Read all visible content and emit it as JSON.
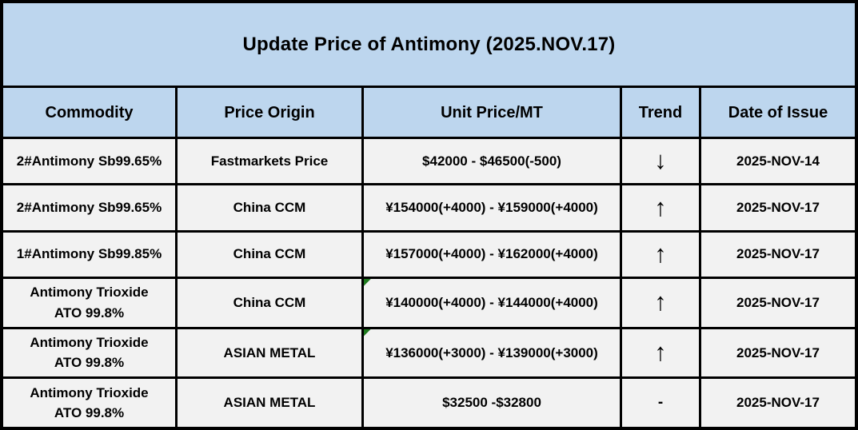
{
  "title": "Update Price of Antimony (2025.NOV.17)",
  "header": {
    "columns": [
      "Commodity",
      "Price Origin",
      "Unit Price/MT",
      "Trend",
      "Date of Issue"
    ]
  },
  "rows": [
    {
      "commodity": [
        "2#Antimony  Sb99.65%"
      ],
      "origin": "Fastmarkets Price",
      "price": "$42000 - $46500(-500)",
      "trend": "↓",
      "date": "2025-NOV-14",
      "price_flag": false
    },
    {
      "commodity": [
        "2#Antimony  Sb99.65%"
      ],
      "origin": "China CCM",
      "price": "¥154000(+4000) - ¥159000(+4000)",
      "trend": "↑",
      "date": "2025-NOV-17",
      "price_flag": false
    },
    {
      "commodity": [
        "1#Antimony  Sb99.85%"
      ],
      "origin": "China CCM",
      "price": "¥157000(+4000) - ¥162000(+4000)",
      "trend": "↑",
      "date": "2025-NOV-17",
      "price_flag": false
    },
    {
      "commodity": [
        "Antimony Trioxide",
        "ATO 99.8%"
      ],
      "origin": "China CCM",
      "price": "¥140000(+4000)  - ¥144000(+4000)",
      "trend": "↑",
      "date": "2025-NOV-17",
      "price_flag": true
    },
    {
      "commodity": [
        "Antimony Trioxide",
        "ATO 99.8%"
      ],
      "origin": "ASIAN METAL",
      "price": "¥136000(+3000)  - ¥139000(+3000)",
      "trend": "↑",
      "date": "2025-NOV-17",
      "price_flag": true
    },
    {
      "commodity": [
        "Antimony Trioxide",
        "ATO 99.8%"
      ],
      "origin": "ASIAN METAL",
      "price": "$32500 -$32800",
      "trend": "-",
      "date": "2025-NOV-17",
      "price_flag": false
    }
  ],
  "colors": {
    "header_bg": "#BDD6EE",
    "row_bg": "#F2F2F2",
    "border": "#000000",
    "flag": "#1F7A1F"
  }
}
